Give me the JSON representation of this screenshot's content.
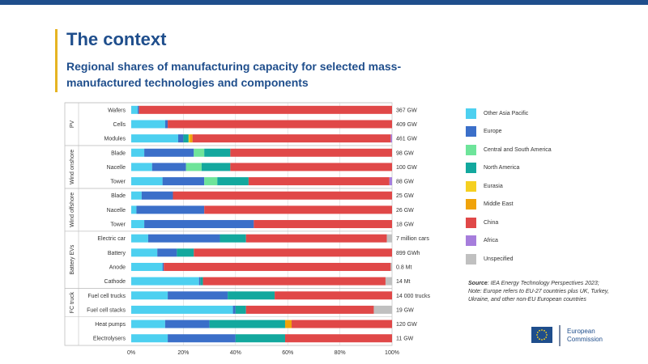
{
  "header": {
    "title": "The context",
    "subtitle": "Regional shares of manufacturing capacity for selected mass-manufactured technologies and components"
  },
  "legend": [
    {
      "label": "Other Asia Pacific",
      "color": "#4dd0f0"
    },
    {
      "label": "Europe",
      "color": "#3b6fc9"
    },
    {
      "label": "Central and South America",
      "color": "#6ee49a"
    },
    {
      "label": "North America",
      "color": "#13a89e"
    },
    {
      "label": "Eurasia",
      "color": "#f5d020"
    },
    {
      "label": "Middle East",
      "color": "#f0a30a"
    },
    {
      "label": "China",
      "color": "#e04848"
    },
    {
      "label": "Africa",
      "color": "#a67ddc"
    },
    {
      "label": "Unspecified",
      "color": "#c0c0c0"
    }
  ],
  "source": {
    "label": "Source",
    "text": ": IEA Energy Technology Perspectives 2023;",
    "note": "Note: Europe refers to EU-27 countries plus UK, Turkey, Ukraine, and other non-EU European countries"
  },
  "logo": {
    "line1": "European",
    "line2": "Commission"
  },
  "chart_data": {
    "type": "bar",
    "orientation": "horizontal",
    "stacked": true,
    "normalized_to_percent": true,
    "xlim": [
      0,
      100
    ],
    "x_tick_labels": [
      "0%",
      "20%",
      "40%",
      "60%",
      "80%",
      "100%"
    ],
    "series_order": [
      "Other Asia Pacific",
      "Europe",
      "Central and South America",
      "North America",
      "Eurasia",
      "Middle East",
      "China",
      "Africa",
      "Unspecified"
    ],
    "groups": [
      {
        "label": "PV",
        "rows": [
          0,
          1,
          2
        ]
      },
      {
        "label": "Wind onshore",
        "rows": [
          3,
          4,
          5
        ]
      },
      {
        "label": "Wind offshore",
        "rows": [
          6,
          7,
          8
        ]
      },
      {
        "label": "Battery EVs",
        "rows": [
          9,
          10,
          11,
          12
        ]
      },
      {
        "label": "FC truck",
        "rows": [
          13,
          14
        ]
      }
    ],
    "rows": [
      {
        "label": "Wafers",
        "capacity": "367 GW",
        "values": [
          2.5,
          0.5,
          0,
          0,
          0,
          0,
          97,
          0,
          0
        ]
      },
      {
        "label": "Cells",
        "capacity": "409 GW",
        "values": [
          13,
          1,
          0,
          0,
          0,
          0,
          86,
          0,
          0
        ]
      },
      {
        "label": "Modules",
        "capacity": "461 GW",
        "values": [
          18,
          2,
          0,
          2,
          0.5,
          1,
          76,
          0.5,
          0
        ]
      },
      {
        "label": "Blade",
        "capacity": "98 GW",
        "values": [
          5,
          19,
          4,
          10,
          0,
          0,
          62,
          0,
          0
        ]
      },
      {
        "label": "Nacelle",
        "capacity": "100 GW",
        "values": [
          8,
          13,
          6,
          11,
          0,
          0,
          62,
          0,
          0
        ]
      },
      {
        "label": "Tower",
        "capacity": "88 GW",
        "values": [
          12,
          16,
          5,
          12,
          0,
          0,
          54,
          1,
          0
        ]
      },
      {
        "label": "Blade",
        "capacity": "25 GW",
        "values": [
          4,
          12,
          0,
          0,
          0,
          0,
          84,
          0,
          0
        ]
      },
      {
        "label": "Nacelle",
        "capacity": "26 GW",
        "values": [
          2,
          26,
          0,
          0,
          0,
          0,
          72,
          0,
          0
        ]
      },
      {
        "label": "Tower",
        "capacity": "18 GW",
        "values": [
          5,
          42,
          0,
          0,
          0,
          0,
          53,
          0,
          0
        ]
      },
      {
        "label": "Electric car",
        "capacity": "7 million cars",
        "values": [
          6.5,
          27.5,
          0,
          10,
          0,
          0,
          54,
          0,
          2
        ]
      },
      {
        "label": "Battery",
        "capacity": "899 GWh",
        "values": [
          10,
          7.5,
          0,
          6.5,
          0,
          0,
          76,
          0,
          0
        ]
      },
      {
        "label": "Anode",
        "capacity": "0.8 Mt",
        "values": [
          12,
          0.5,
          0,
          0,
          0,
          0,
          87,
          0,
          0.5
        ]
      },
      {
        "label": "Cathode",
        "capacity": "14 Mt",
        "values": [
          26,
          0.5,
          0,
          1,
          0,
          0,
          70,
          0,
          2.5
        ]
      },
      {
        "label": "Fuel cell trucks",
        "capacity": "14 000 trucks",
        "values": [
          14,
          23,
          0,
          18,
          0,
          0,
          45,
          0,
          0
        ]
      },
      {
        "label": "Fuel cell stacks",
        "capacity": "19 GW",
        "values": [
          39,
          1,
          0,
          4,
          0,
          0,
          49,
          0,
          7
        ]
      },
      {
        "label": "Heat pumps",
        "capacity": "120 GW",
        "values": [
          13,
          17,
          0,
          29,
          0,
          2.5,
          38.5,
          0,
          0
        ]
      },
      {
        "label": "Electrolysers",
        "capacity": "11 GW",
        "values": [
          14,
          26,
          0,
          19,
          0,
          0,
          41,
          0,
          0
        ]
      }
    ]
  }
}
